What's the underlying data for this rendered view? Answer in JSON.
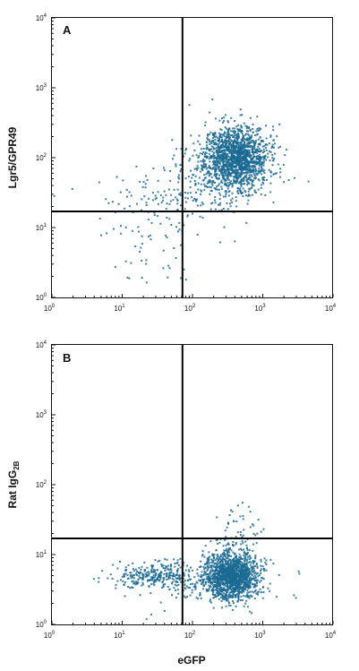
{
  "chart_data": [
    {
      "type": "scatter",
      "panel_label": "A",
      "xlabel": "",
      "ylabel": "Lgr5/GPR49",
      "ylabel_sub": "",
      "xscale": "log",
      "yscale": "log",
      "xlim": [
        1,
        10000
      ],
      "ylim": [
        1,
        10000
      ],
      "x_tick_values": [
        1,
        10,
        100,
        1000,
        10000
      ],
      "y_tick_values": [
        1,
        10,
        100,
        1000,
        10000
      ],
      "x_ticks": [
        "10",
        "10",
        "10",
        "10",
        "10"
      ],
      "x_tick_exps": [
        "0",
        "1",
        "2",
        "3",
        "4"
      ],
      "y_ticks": [
        "10",
        "10",
        "10",
        "10",
        "10"
      ],
      "y_tick_exps": [
        "0",
        "1",
        "2",
        "3",
        "4"
      ],
      "quadrant_gate": {
        "x": 72,
        "y": 17
      },
      "point_color": "#1b6a93",
      "clusters": [
        {
          "cx": 420,
          "cy": 105,
          "sx": 0.22,
          "sy": 0.22,
          "n": 1500,
          "seed": 11
        },
        {
          "cx": 230,
          "cy": 55,
          "sx": 0.35,
          "sy": 0.3,
          "n": 220,
          "seed": 12
        },
        {
          "cx": 50,
          "cy": 25,
          "sx": 0.45,
          "sy": 0.25,
          "n": 110,
          "seed": 13
        },
        {
          "cx": 30,
          "cy": 8,
          "sx": 0.5,
          "sy": 0.45,
          "n": 55,
          "seed": 14
        }
      ]
    },
    {
      "type": "scatter",
      "panel_label": "B",
      "xlabel": "eGFP",
      "ylabel": "Rat IgG",
      "ylabel_sub": "2B",
      "xscale": "log",
      "yscale": "log",
      "xlim": [
        1,
        10000
      ],
      "ylim": [
        1,
        10000
      ],
      "x_tick_values": [
        1,
        10,
        100,
        1000,
        10000
      ],
      "y_tick_values": [
        1,
        10,
        100,
        1000,
        10000
      ],
      "x_ticks": [
        "10",
        "10",
        "10",
        "10",
        "10"
      ],
      "x_tick_exps": [
        "0",
        "1",
        "2",
        "3",
        "4"
      ],
      "y_ticks": [
        "10",
        "10",
        "10",
        "10",
        "10"
      ],
      "y_tick_exps": [
        "0",
        "1",
        "2",
        "3",
        "4"
      ],
      "quadrant_gate": {
        "x": 72,
        "y": 17
      },
      "point_color": "#1b6a93",
      "clusters": [
        {
          "cx": 350,
          "cy": 5,
          "sx": 0.2,
          "sy": 0.17,
          "n": 1500,
          "seed": 21
        },
        {
          "cx": 30,
          "cy": 5,
          "sx": 0.3,
          "sy": 0.1,
          "n": 320,
          "seed": 22
        },
        {
          "cx": 450,
          "cy": 18,
          "sx": 0.15,
          "sy": 0.2,
          "n": 70,
          "seed": 23
        },
        {
          "cx": 200,
          "cy": 3,
          "sx": 0.6,
          "sy": 0.25,
          "n": 50,
          "seed": 24
        }
      ]
    }
  ]
}
